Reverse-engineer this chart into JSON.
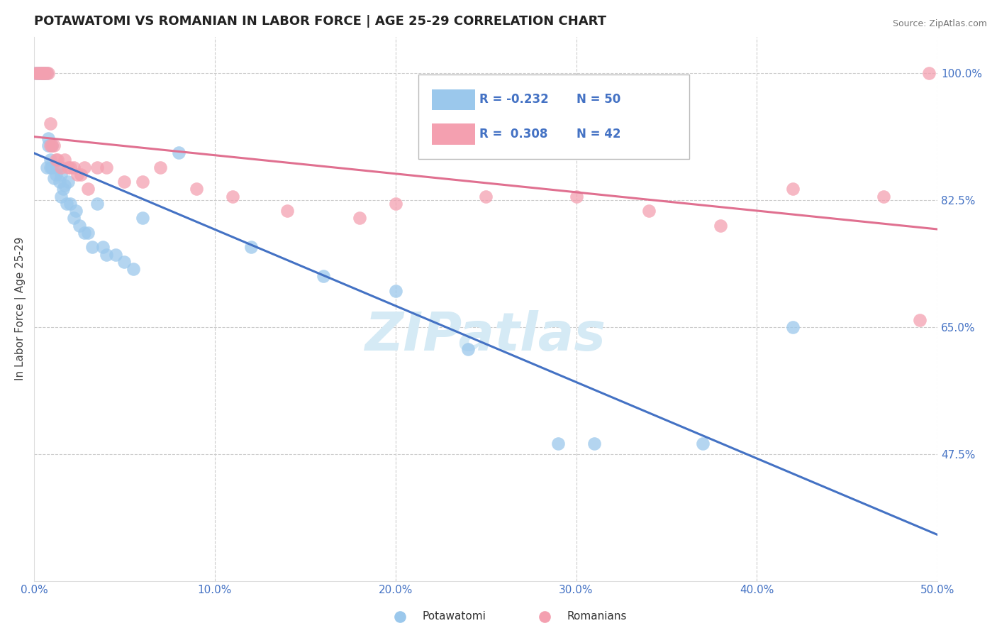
{
  "title": "POTAWATOMI VS ROMANIAN IN LABOR FORCE | AGE 25-29 CORRELATION CHART",
  "source": "Source: ZipAtlas.com",
  "ylabel": "In Labor Force | Age 25-29",
  "xlim": [
    0.0,
    0.5
  ],
  "ylim": [
    0.3,
    1.05
  ],
  "xtick_labels": [
    "0.0%",
    "10.0%",
    "20.0%",
    "30.0%",
    "40.0%",
    "50.0%"
  ],
  "xtick_vals": [
    0.0,
    0.1,
    0.2,
    0.3,
    0.4,
    0.5
  ],
  "ytick_labels": [
    "47.5%",
    "65.0%",
    "82.5%",
    "100.0%"
  ],
  "ytick_vals": [
    0.475,
    0.65,
    0.825,
    1.0
  ],
  "hgrid_vals": [
    0.475,
    0.65,
    0.825,
    1.0
  ],
  "vgrid_vals": [
    0.1,
    0.2,
    0.3,
    0.4,
    0.5
  ],
  "potawatomi_x": [
    0.001,
    0.002,
    0.003,
    0.003,
    0.004,
    0.004,
    0.005,
    0.005,
    0.006,
    0.007,
    0.007,
    0.008,
    0.008,
    0.009,
    0.009,
    0.01,
    0.01,
    0.011,
    0.012,
    0.013,
    0.014,
    0.015,
    0.015,
    0.016,
    0.017,
    0.018,
    0.019,
    0.02,
    0.022,
    0.023,
    0.025,
    0.028,
    0.03,
    0.032,
    0.035,
    0.038,
    0.04,
    0.045,
    0.05,
    0.055,
    0.06,
    0.08,
    0.12,
    0.16,
    0.2,
    0.24,
    0.29,
    0.31,
    0.37,
    0.42
  ],
  "potawatomi_y": [
    1.0,
    1.0,
    1.0,
    1.0,
    1.0,
    1.0,
    1.0,
    1.0,
    1.0,
    1.0,
    0.87,
    0.9,
    0.91,
    0.87,
    0.88,
    0.87,
    0.9,
    0.855,
    0.86,
    0.87,
    0.85,
    0.86,
    0.83,
    0.84,
    0.845,
    0.82,
    0.85,
    0.82,
    0.8,
    0.81,
    0.79,
    0.78,
    0.78,
    0.76,
    0.82,
    0.76,
    0.75,
    0.75,
    0.74,
    0.73,
    0.8,
    0.89,
    0.76,
    0.72,
    0.7,
    0.62,
    0.49,
    0.49,
    0.49,
    0.65
  ],
  "romanian_x": [
    0.001,
    0.002,
    0.003,
    0.004,
    0.005,
    0.005,
    0.006,
    0.007,
    0.008,
    0.009,
    0.009,
    0.01,
    0.011,
    0.012,
    0.013,
    0.015,
    0.017,
    0.019,
    0.02,
    0.022,
    0.024,
    0.026,
    0.028,
    0.03,
    0.035,
    0.04,
    0.05,
    0.06,
    0.07,
    0.09,
    0.11,
    0.14,
    0.18,
    0.2,
    0.25,
    0.3,
    0.34,
    0.38,
    0.42,
    0.47,
    0.49,
    0.495
  ],
  "romanian_y": [
    1.0,
    1.0,
    1.0,
    1.0,
    1.0,
    1.0,
    1.0,
    1.0,
    1.0,
    0.93,
    0.9,
    0.9,
    0.9,
    0.88,
    0.88,
    0.87,
    0.88,
    0.87,
    0.87,
    0.87,
    0.86,
    0.86,
    0.87,
    0.84,
    0.87,
    0.87,
    0.85,
    0.85,
    0.87,
    0.84,
    0.83,
    0.81,
    0.8,
    0.82,
    0.83,
    0.83,
    0.81,
    0.79,
    0.84,
    0.83,
    0.66,
    1.0
  ],
  "potawatomi_color": "#9BC8EC",
  "romanian_color": "#F4A0B0",
  "potawatomi_line_color": "#4472C4",
  "romanian_line_color": "#E07090",
  "potawatomi_R": -0.232,
  "potawatomi_N": 50,
  "romanian_R": 0.308,
  "romanian_N": 42,
  "legend_color": "#4472C4",
  "watermark_text": "ZIPatlas",
  "watermark_color": "#D5EAF5",
  "title_color": "#222222",
  "source_color": "#777777",
  "axis_label_color": "#444444",
  "tick_label_color": "#4472C4",
  "grid_color": "#CCCCCC",
  "background_color": "#FFFFFF"
}
